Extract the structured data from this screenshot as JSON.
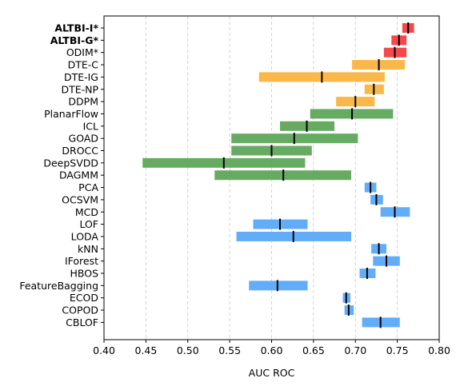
{
  "chart_data": {
    "type": "range-bar",
    "xlabel": "AUC ROC",
    "xlim": [
      0.4,
      0.8
    ],
    "xticks": [
      0.4,
      0.45,
      0.5,
      0.55,
      0.6,
      0.65,
      0.7,
      0.75,
      0.8
    ],
    "xtick_labels": [
      "0.40",
      "0.45",
      "0.50",
      "0.55",
      "0.60",
      "0.65",
      "0.70",
      "0.75",
      "0.80"
    ],
    "grid": "x-dashed",
    "colors": {
      "red": "#f4484a",
      "orange": "#fab84a",
      "green": "#67ab63",
      "blue": "#63adf8"
    },
    "rows": [
      {
        "label": "ALTBI-I*",
        "bold": true,
        "color": "red",
        "low": 0.756,
        "high": 0.77,
        "median": 0.763
      },
      {
        "label": "ALTBI-G*",
        "bold": true,
        "color": "red",
        "low": 0.743,
        "high": 0.761,
        "median": 0.752
      },
      {
        "label": "ODIM*",
        "bold": false,
        "color": "red",
        "low": 0.734,
        "high": 0.761,
        "median": 0.747
      },
      {
        "label": "DTE-C",
        "bold": false,
        "color": "orange",
        "low": 0.696,
        "high": 0.759,
        "median": 0.728
      },
      {
        "label": "DTE-IG",
        "bold": false,
        "color": "orange",
        "low": 0.585,
        "high": 0.735,
        "median": 0.66
      },
      {
        "label": "DTE-NP",
        "bold": false,
        "color": "orange",
        "low": 0.711,
        "high": 0.734,
        "median": 0.722
      },
      {
        "label": "DDPM",
        "bold": false,
        "color": "orange",
        "low": 0.677,
        "high": 0.723,
        "median": 0.7
      },
      {
        "label": "PlanarFlow",
        "bold": false,
        "color": "green",
        "low": 0.646,
        "high": 0.745,
        "median": 0.696
      },
      {
        "label": "ICL",
        "bold": false,
        "color": "green",
        "low": 0.61,
        "high": 0.675,
        "median": 0.642
      },
      {
        "label": "GOAD",
        "bold": false,
        "color": "green",
        "low": 0.552,
        "high": 0.703,
        "median": 0.627
      },
      {
        "label": "DROCC",
        "bold": false,
        "color": "green",
        "low": 0.552,
        "high": 0.648,
        "median": 0.6
      },
      {
        "label": "DeepSVDD",
        "bold": false,
        "color": "green",
        "low": 0.446,
        "high": 0.64,
        "median": 0.543
      },
      {
        "label": "DAGMM",
        "bold": false,
        "color": "green",
        "low": 0.532,
        "high": 0.695,
        "median": 0.614
      },
      {
        "label": "PCA",
        "bold": false,
        "color": "blue",
        "low": 0.711,
        "high": 0.725,
        "median": 0.718
      },
      {
        "label": "OCSVM",
        "bold": false,
        "color": "blue",
        "low": 0.718,
        "high": 0.733,
        "median": 0.725
      },
      {
        "label": "MCD",
        "bold": false,
        "color": "blue",
        "low": 0.73,
        "high": 0.765,
        "median": 0.747
      },
      {
        "label": "LOF",
        "bold": false,
        "color": "blue",
        "low": 0.578,
        "high": 0.643,
        "median": 0.61
      },
      {
        "label": "LODA",
        "bold": false,
        "color": "blue",
        "low": 0.558,
        "high": 0.695,
        "median": 0.626
      },
      {
        "label": "kNN",
        "bold": false,
        "color": "blue",
        "low": 0.719,
        "high": 0.737,
        "median": 0.728
      },
      {
        "label": "IForest",
        "bold": false,
        "color": "blue",
        "low": 0.721,
        "high": 0.753,
        "median": 0.737
      },
      {
        "label": "HBOS",
        "bold": false,
        "color": "blue",
        "low": 0.705,
        "high": 0.724,
        "median": 0.714
      },
      {
        "label": "FeatureBagging",
        "bold": false,
        "color": "blue",
        "low": 0.573,
        "high": 0.643,
        "median": 0.607
      },
      {
        "label": "ECOD",
        "bold": false,
        "color": "blue",
        "low": 0.685,
        "high": 0.694,
        "median": 0.689
      },
      {
        "label": "COPOD",
        "bold": false,
        "color": "blue",
        "low": 0.687,
        "high": 0.698,
        "median": 0.692
      },
      {
        "label": "CBLOF",
        "bold": false,
        "color": "blue",
        "low": 0.708,
        "high": 0.753,
        "median": 0.73
      }
    ]
  }
}
